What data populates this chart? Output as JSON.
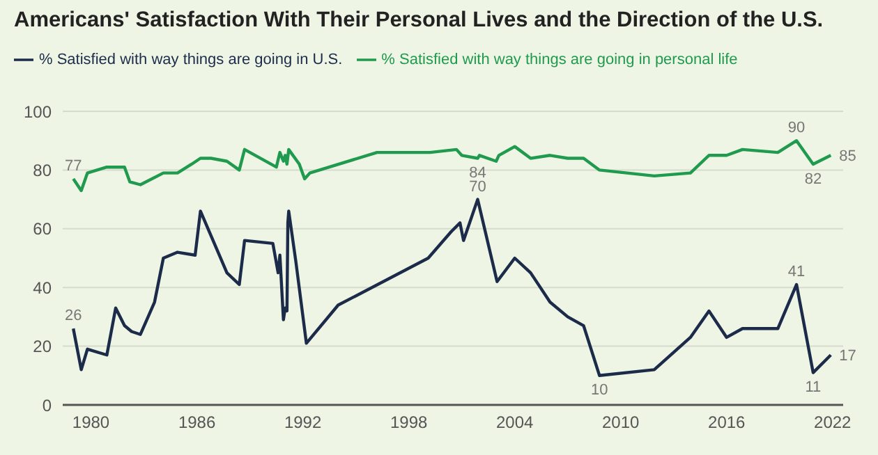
{
  "chart_data": {
    "type": "line",
    "title": "Americans' Satisfaction With Their Personal Lives and the Direction of the U.S.",
    "xlim": [
      1978.4,
      2022.6
    ],
    "xticks": [
      1980,
      1986,
      1992,
      1998,
      2004,
      2010,
      2016,
      2022
    ],
    "ylim": [
      0,
      100
    ],
    "yticks": [
      0,
      20,
      40,
      60,
      80,
      100
    ],
    "grid": "y",
    "legend": "top left",
    "marker": "none",
    "line_style": "solid",
    "series": [
      {
        "name": "% Satisfied with way things are going in personal life",
        "color": "#1f9a4e",
        "x": [
          1979.0,
          1979.45,
          1979.8,
          1980.9,
          1981.9,
          1982.2,
          1982.8,
          1984.1,
          1984.9,
          1985.7,
          1986.2,
          1986.8,
          1987.7,
          1988.4,
          1988.7,
          1990.5,
          1990.7,
          1990.9,
          1991.0,
          1991.1,
          1991.2,
          1991.8,
          1992.1,
          1992.4,
          1996.2,
          1999.2,
          2000.7,
          2001.0,
          2001.9,
          2002.0,
          2002.95,
          2003.1,
          2004.0,
          2004.9,
          2006.0,
          2007.0,
          2007.9,
          2008.8,
          2011.9,
          2013.95,
          2015.0,
          2016.0,
          2016.9,
          2018.9,
          2019.96,
          2020.9,
          2021.9
        ],
        "values": [
          77,
          73,
          79,
          81,
          81,
          76,
          75,
          79,
          79,
          82,
          84,
          84,
          83,
          80,
          87,
          81,
          86,
          83,
          85,
          82,
          87,
          82,
          77,
          79,
          86,
          86,
          87,
          85,
          84,
          85,
          83,
          85,
          88,
          84,
          85,
          84,
          84,
          80,
          78,
          79,
          85,
          85,
          87,
          86,
          90,
          82,
          85
        ]
      },
      {
        "name": "% Satisfied with way things are going in U.S.",
        "color": "#1c2b4a",
        "x": [
          1979.0,
          1979.45,
          1979.8,
          1980.9,
          1981.4,
          1981.9,
          1982.3,
          1982.8,
          1983.6,
          1984.1,
          1984.9,
          1985.9,
          1986.2,
          1987.7,
          1988.4,
          1988.7,
          1990.3,
          1990.6,
          1990.7,
          1990.9,
          1991.0,
          1991.1,
          1991.15,
          1991.2,
          1991.6,
          1992.2,
          1994.0,
          1999.1,
          2000.4,
          2000.9,
          2001.1,
          2001.9,
          2003.0,
          2004.0,
          2004.9,
          2006.0,
          2007.0,
          2007.9,
          2008.8,
          2011.9,
          2013.95,
          2015.0,
          2016.0,
          2016.9,
          2018.9,
          2019.96,
          2020.9,
          2021.9
        ],
        "values": [
          26,
          12,
          19,
          17,
          33,
          27,
          25,
          24,
          35,
          50,
          52,
          51,
          66,
          45,
          41,
          56,
          55,
          45,
          51,
          29,
          33,
          32,
          62,
          66,
          49,
          21,
          34,
          50,
          59,
          62,
          56,
          70,
          42,
          50,
          45,
          35,
          30,
          27,
          10,
          12,
          23,
          32,
          23,
          26,
          26,
          41,
          11,
          17
        ]
      }
    ],
    "annotations": [
      {
        "text": "77",
        "x": 1979.0,
        "y": 77
      },
      {
        "text": "26",
        "x": 1979.0,
        "y": 26
      },
      {
        "text": "84",
        "x": 2001.9,
        "y": 84
      },
      {
        "text": "70",
        "x": 2001.9,
        "y": 70
      },
      {
        "text": "10",
        "x": 2008.8,
        "y": 10
      },
      {
        "text": "90",
        "x": 2019.96,
        "y": 90
      },
      {
        "text": "41",
        "x": 2019.96,
        "y": 41
      },
      {
        "text": "82",
        "x": 2020.9,
        "y": 82
      },
      {
        "text": "11",
        "x": 2020.9,
        "y": 11
      },
      {
        "text": "85",
        "x": 2021.9,
        "y": 85
      },
      {
        "text": "17",
        "x": 2021.9,
        "y": 17
      }
    ]
  }
}
